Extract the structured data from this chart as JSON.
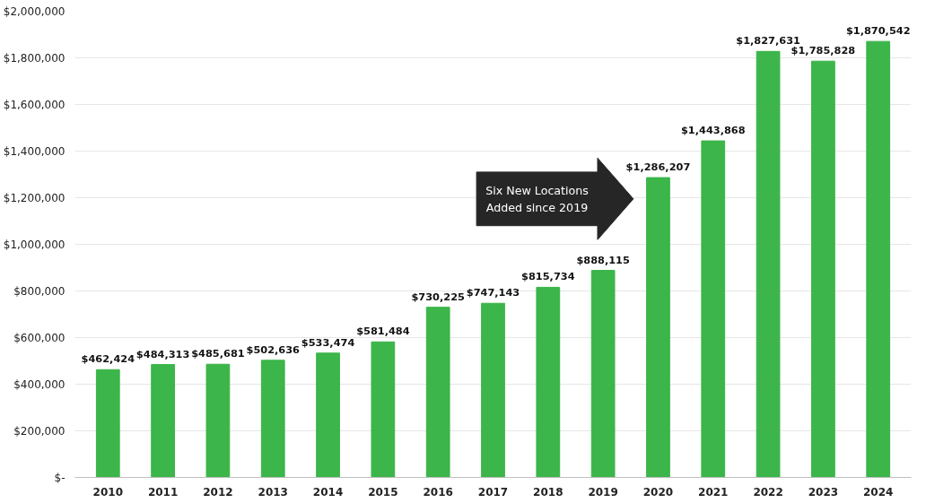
{
  "chart_data": {
    "type": "bar",
    "categories": [
      "2010",
      "2011",
      "2012",
      "2013",
      "2014",
      "2015",
      "2016",
      "2017",
      "2018",
      "2019",
      "2020",
      "2021",
      "2022",
      "2023",
      "2024"
    ],
    "values": [
      462424,
      484313,
      485681,
      502636,
      533474,
      581484,
      730225,
      747143,
      815734,
      888115,
      1286207,
      1443868,
      1827631,
      1785828,
      1870542
    ],
    "value_labels": [
      "$462,424",
      "$484,313",
      "$485,681",
      "$502,636",
      "$533,474",
      "$581,484",
      "$730,225",
      "$747,143",
      "$815,734",
      "$888,115",
      "$1,286,207",
      "$1,443,868",
      "$1,827,631",
      "$1,785,828",
      "$1,870,542"
    ],
    "color": "#3cb54a",
    "ylim": [
      0,
      2000000
    ],
    "yticks": [
      {
        "value": 0,
        "label": "$-"
      },
      {
        "value": 200000,
        "label": "$200,000"
      },
      {
        "value": 400000,
        "label": "$400,000"
      },
      {
        "value": 600000,
        "label": "$600,000"
      },
      {
        "value": 800000,
        "label": "$800,000"
      },
      {
        "value": 1000000,
        "label": "$1,000,000"
      },
      {
        "value": 1200000,
        "label": "$1,200,000"
      },
      {
        "value": 1400000,
        "label": "$1,400,000"
      },
      {
        "value": 1600000,
        "label": "$1,600,000"
      },
      {
        "value": 1800000,
        "label": "$1,800,000"
      },
      {
        "value": 2000000,
        "label": "$2,000,000"
      }
    ],
    "grid": "y",
    "annotations": [
      "Six New Locations\nAdded since 2019"
    ]
  }
}
